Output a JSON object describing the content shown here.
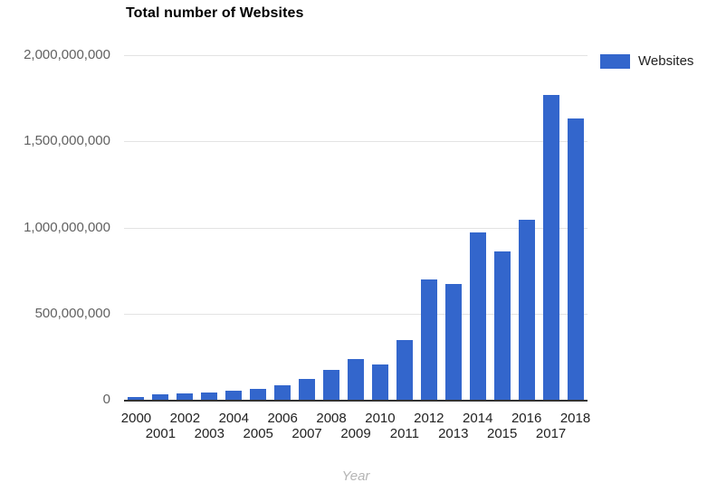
{
  "chart": {
    "title": "Total number of Websites",
    "legend_label": "Websites"
  },
  "chart_data": {
    "type": "bar",
    "title": "Total number of Websites",
    "xlabel": "Year",
    "ylabel": "",
    "categories": [
      "2000",
      "2001",
      "2002",
      "2003",
      "2004",
      "2005",
      "2006",
      "2007",
      "2008",
      "2009",
      "2010",
      "2011",
      "2012",
      "2013",
      "2014",
      "2015",
      "2016",
      "2017",
      "2018"
    ],
    "series": [
      {
        "name": "Websites",
        "color": "#3366cc",
        "values": [
          17087182,
          29254370,
          38760373,
          40912332,
          51611646,
          64780617,
          85507314,
          121892559,
          172338726,
          238027855,
          206956723,
          346004403,
          697089489,
          672985183,
          968882453,
          863105652,
          1045534808,
          1766926408,
          1630322579
        ]
      }
    ],
    "ylim": [
      0,
      2000000000
    ],
    "ytick_labels": [
      "0",
      "500,000,000",
      "1,000,000,000",
      "1,500,000,000",
      "2,000,000,000"
    ],
    "grid": true,
    "legend_position": "top-right",
    "x_label_layout": "staggered-two-rows",
    "colors": {
      "bar": "#3366cc",
      "gridline": "#e3e3e3",
      "axis_line": "#333333",
      "y_tick_text": "#616161",
      "x_tick_text": "#222222",
      "axis_title_text": "#b5b5b5",
      "title_text": "#000000",
      "background": "#ffffff"
    }
  }
}
